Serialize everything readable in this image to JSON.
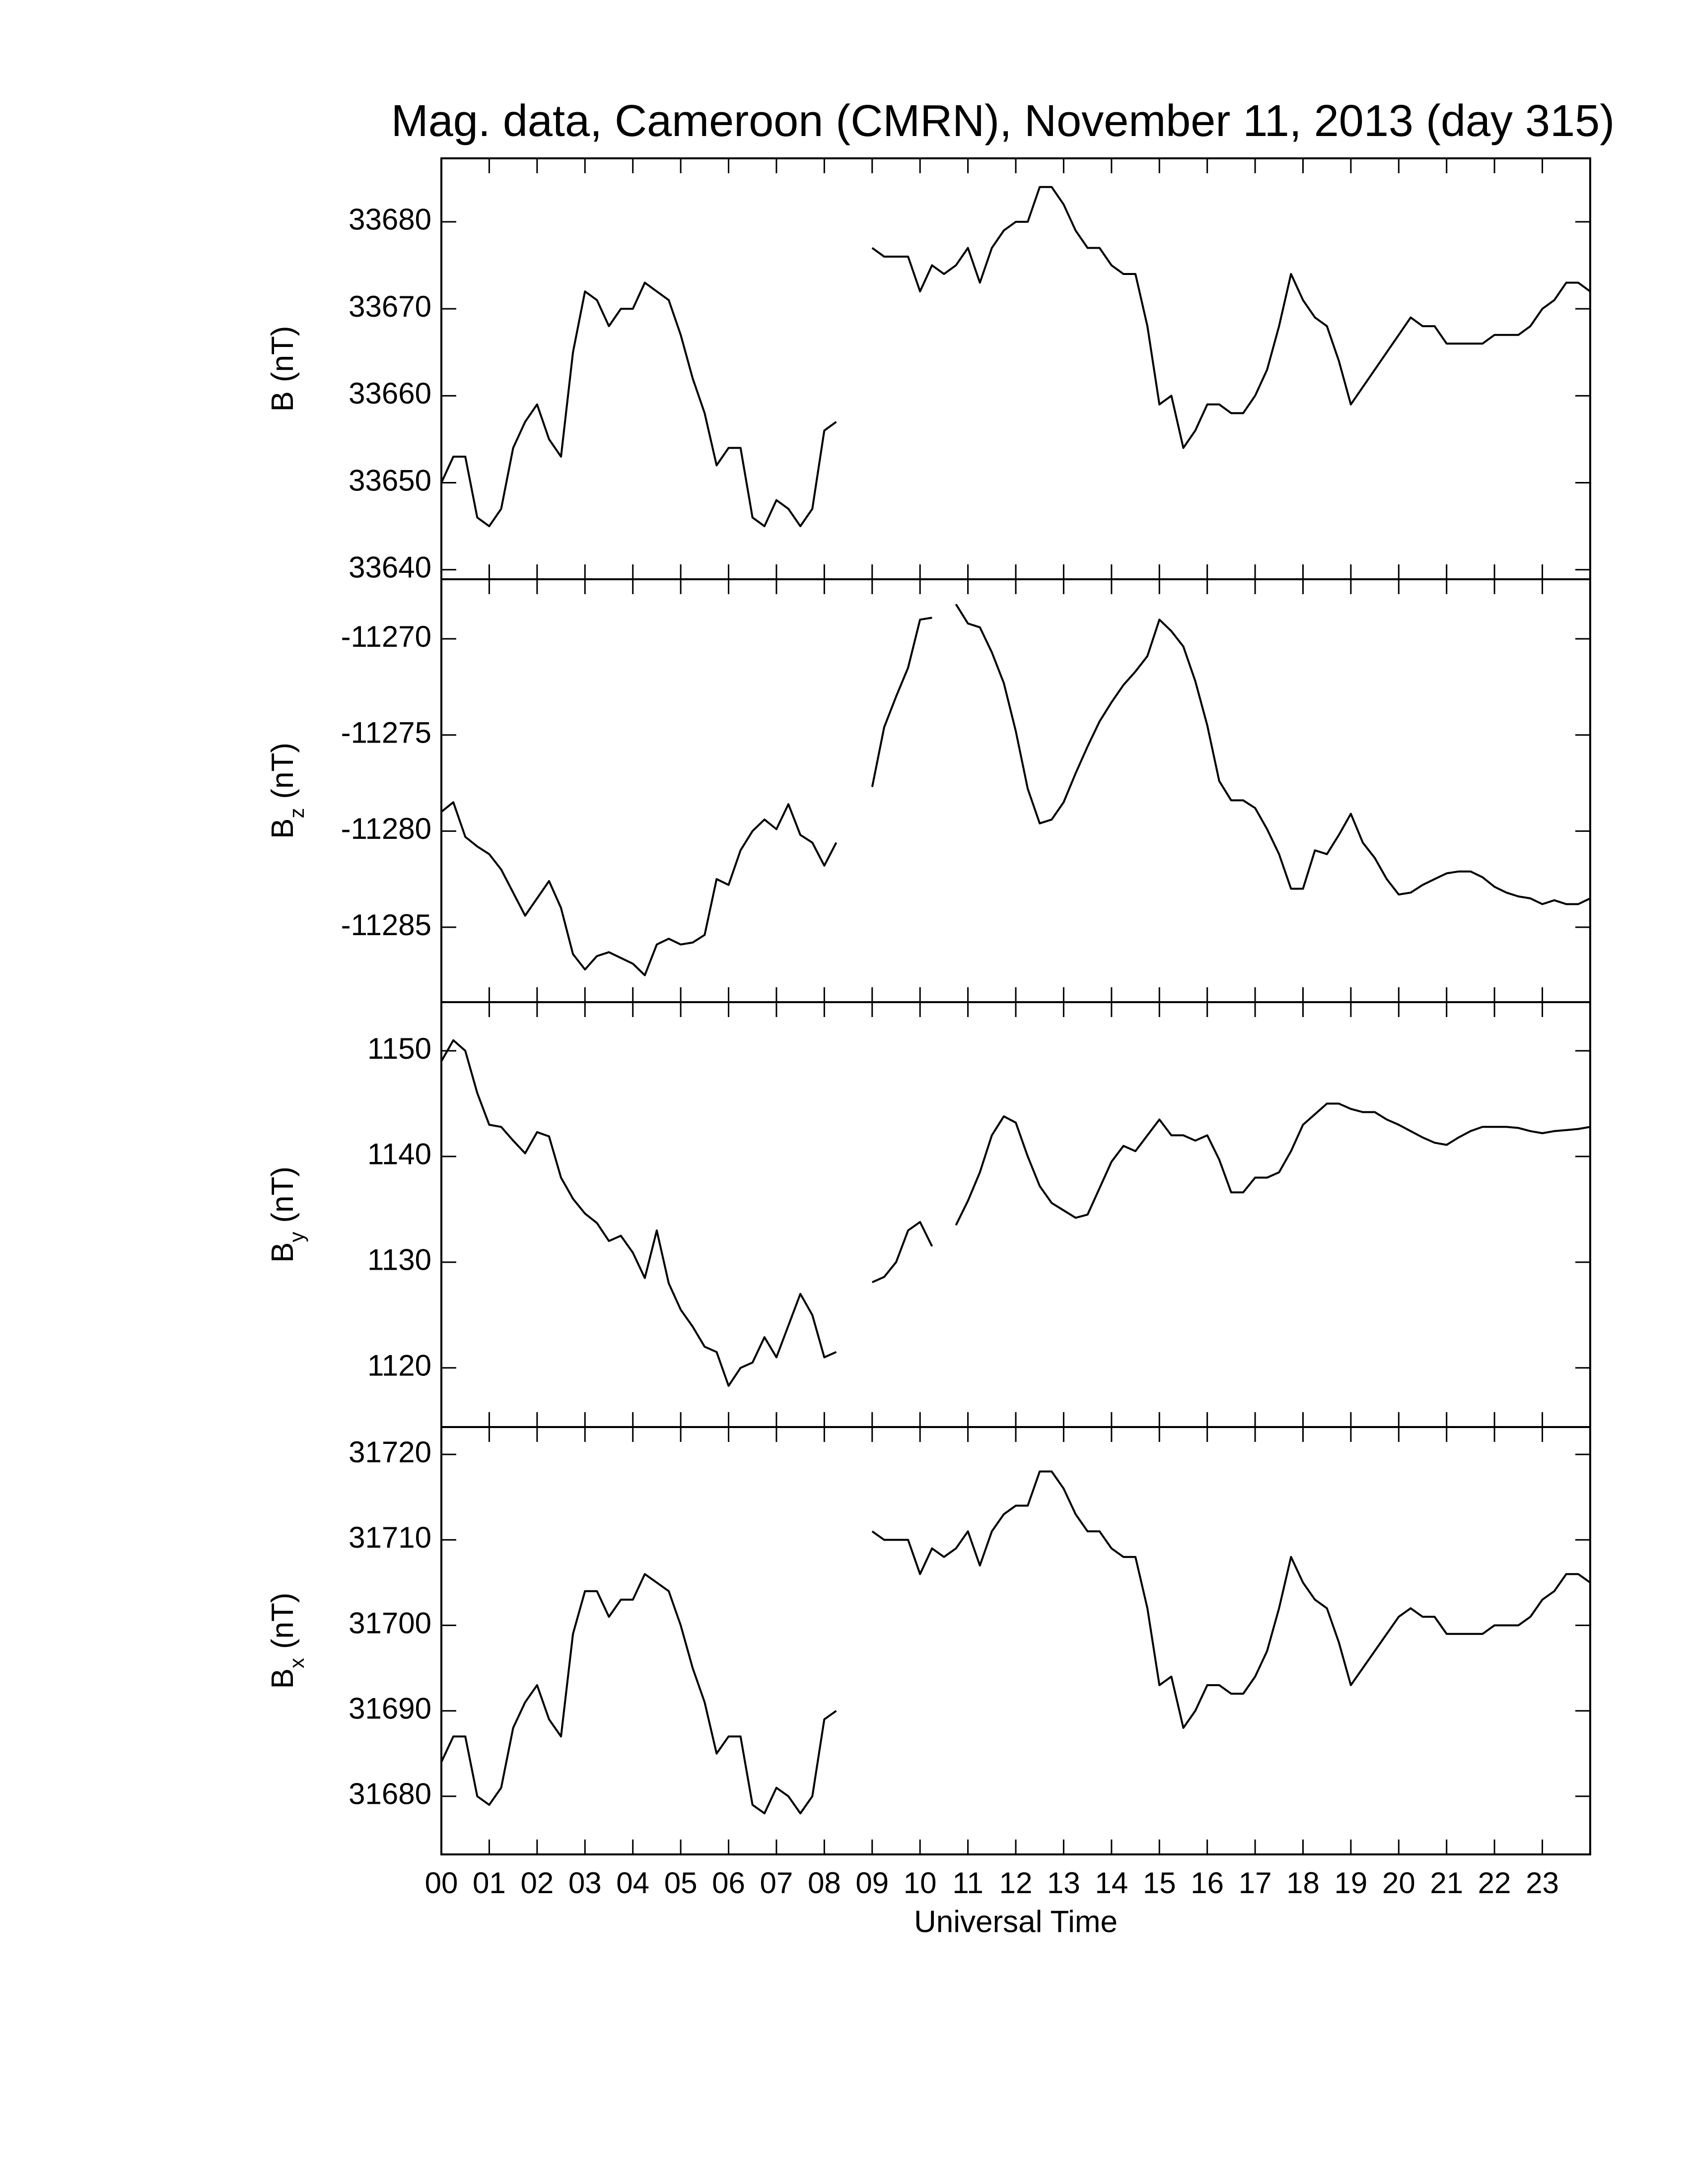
{
  "chart_data": [
    {
      "type": "line",
      "title": "Mag. data, Cameroon (CMRN), November 11, 2013 (day 315)",
      "ylabel": "B",
      "ylabel_unit": "(nT)",
      "color": "#000000",
      "xlim": [
        0,
        24
      ],
      "ylim": [
        33638.9,
        33687.3
      ],
      "yticks": [
        33640,
        33650,
        33660,
        33670,
        33680
      ],
      "x": [
        0,
        0.25,
        0.5,
        0.75,
        1,
        1.25,
        1.5,
        1.75,
        2,
        2.25,
        2.5,
        2.75,
        3,
        3.25,
        3.5,
        3.75,
        4,
        4.25,
        4.5,
        4.75,
        5,
        5.25,
        5.5,
        5.75,
        6,
        6.25,
        6.5,
        6.75,
        7,
        7.25,
        7.5,
        7.75,
        8,
        8.25,
        8.5,
        8.75,
        9,
        9.25,
        9.5,
        9.75,
        10,
        10.25,
        10.5,
        10.75,
        11,
        11.25,
        11.5,
        11.75,
        12,
        12.25,
        12.5,
        12.75,
        13,
        13.25,
        13.5,
        13.75,
        14,
        14.25,
        14.5,
        14.75,
        15,
        15.25,
        15.5,
        15.75,
        16,
        16.25,
        16.5,
        16.75,
        17,
        17.25,
        17.5,
        17.75,
        18,
        18.25,
        18.5,
        18.75,
        19,
        19.25,
        19.5,
        19.75,
        20,
        20.25,
        20.5,
        20.75,
        21,
        21.25,
        21.5,
        21.75,
        22,
        22.25,
        22.5,
        22.75,
        23,
        23.25,
        23.5,
        23.75,
        24
      ],
      "values": [
        33650,
        33653,
        33653,
        33646,
        33645,
        33647,
        33654,
        33657,
        33659,
        33655,
        33653,
        33665,
        33672,
        33671,
        33668,
        33670,
        33670,
        33673,
        33672,
        33671,
        33667,
        33662,
        33658,
        33652,
        33654,
        33654,
        33646,
        33645,
        33648,
        33647,
        33645,
        33647,
        33656,
        33657,
        null,
        null,
        33677,
        33676,
        33676,
        33676,
        33672,
        33675,
        33674,
        33675,
        33677,
        33673,
        33677,
        33679,
        33680,
        33680,
        33684,
        33684,
        33682,
        33679,
        33677,
        33677,
        33675,
        33674,
        33674,
        33668,
        33659,
        33660,
        33654,
        33656,
        33659,
        33659,
        33658,
        33658,
        33660,
        33663,
        33668,
        33674,
        33671,
        33669,
        33668,
        33664,
        33659,
        33661,
        33663,
        33665,
        33667,
        33669,
        33668,
        33668,
        33666,
        33666,
        33666,
        33666,
        33667,
        33667,
        33667,
        33668,
        33670,
        33671,
        33673,
        33673,
        33672
      ]
    },
    {
      "type": "line",
      "ylabel": "B",
      "ylabel_subscript": "z",
      "ylabel_unit": "(nT)",
      "color": "#000000",
      "xlim": [
        0,
        24
      ],
      "ylim": [
        -11288.9,
        -11266.9
      ],
      "yticks": [
        -11285,
        -11280,
        -11275,
        -11270
      ],
      "x": [
        0,
        0.25,
        0.5,
        0.75,
        1,
        1.25,
        1.5,
        1.75,
        2,
        2.25,
        2.5,
        2.75,
        3,
        3.25,
        3.5,
        3.75,
        4,
        4.25,
        4.5,
        4.75,
        5,
        5.25,
        5.5,
        5.75,
        6,
        6.25,
        6.5,
        6.75,
        7,
        7.25,
        7.5,
        7.75,
        8,
        8.25,
        8.5,
        8.75,
        9,
        9.25,
        9.5,
        9.75,
        10,
        10.25,
        10.5,
        10.75,
        11,
        11.25,
        11.5,
        11.75,
        12,
        12.25,
        12.5,
        12.75,
        13,
        13.25,
        13.5,
        13.75,
        14,
        14.25,
        14.5,
        14.75,
        15,
        15.25,
        15.5,
        15.75,
        16,
        16.25,
        16.5,
        16.75,
        17,
        17.25,
        17.5,
        17.75,
        18,
        18.25,
        18.5,
        18.75,
        19,
        19.25,
        19.5,
        19.75,
        20,
        20.25,
        20.5,
        20.75,
        21,
        21.25,
        21.5,
        21.75,
        22,
        22.25,
        22.5,
        22.75,
        23,
        23.25,
        23.5,
        23.75,
        24
      ],
      "values": [
        -11279,
        -11278.5,
        -11280.3,
        -11280.8,
        -11281.2,
        -11282,
        -11283.2,
        -11284.4,
        -11283.5,
        -11282.6,
        -11284,
        -11286.4,
        -11287.2,
        -11286.5,
        -11286.3,
        -11286.6,
        -11286.9,
        -11287.5,
        -11285.9,
        -11285.6,
        -11285.9,
        -11285.8,
        -11285.4,
        -11282.5,
        -11282.8,
        -11281,
        -11280,
        -11279.4,
        -11279.9,
        -11278.6,
        -11280.2,
        -11280.6,
        -11281.8,
        -11280.6,
        null,
        null,
        -11277.7,
        -11274.6,
        -11273,
        -11271.5,
        -11269,
        -11268.9,
        null,
        -11268.2,
        -11269.2,
        -11269.4,
        -11270.7,
        -11272.3,
        -11274.8,
        -11277.8,
        -11279.6,
        -11279.4,
        -11278.5,
        -11277,
        -11275.6,
        -11274.3,
        -11273.3,
        -11272.4,
        -11271.7,
        -11270.9,
        -11269,
        -11269.6,
        -11270.4,
        -11272.2,
        -11274.5,
        -11277.4,
        -11278.4,
        -11278.4,
        -11278.8,
        -11279.9,
        -11281.2,
        -11283,
        -11283,
        -11281,
        -11281.2,
        -11280.2,
        -11279.1,
        -11280.6,
        -11281.4,
        -11282.5,
        -11283.3,
        -11283.2,
        -11282.8,
        -11282.5,
        -11282.2,
        -11282.1,
        -11282.1,
        -11282.4,
        -11282.9,
        -11283.2,
        -11283.4,
        -11283.5,
        -11283.8,
        -11283.6,
        -11283.8,
        -11283.8,
        -11283.5
      ]
    },
    {
      "type": "line",
      "ylabel": "B",
      "ylabel_subscript": "y",
      "ylabel_unit": "(nT)",
      "color": "#000000",
      "xlim": [
        0,
        24
      ],
      "ylim": [
        1114.4,
        1154.6
      ],
      "yticks": [
        1120,
        1130,
        1140,
        1150
      ],
      "x": [
        0,
        0.25,
        0.5,
        0.75,
        1,
        1.25,
        1.5,
        1.75,
        2,
        2.25,
        2.5,
        2.75,
        3,
        3.25,
        3.5,
        3.75,
        4,
        4.25,
        4.5,
        4.75,
        5,
        5.25,
        5.5,
        5.75,
        6,
        6.25,
        6.5,
        6.75,
        7,
        7.25,
        7.5,
        7.75,
        8,
        8.25,
        8.5,
        8.75,
        9,
        9.25,
        9.5,
        9.75,
        10,
        10.25,
        10.5,
        10.75,
        11,
        11.25,
        11.5,
        11.75,
        12,
        12.25,
        12.5,
        12.75,
        13,
        13.25,
        13.5,
        13.75,
        14,
        14.25,
        14.5,
        14.75,
        15,
        15.25,
        15.5,
        15.75,
        16,
        16.25,
        16.5,
        16.75,
        17,
        17.25,
        17.5,
        17.75,
        18,
        18.25,
        18.5,
        18.75,
        19,
        19.25,
        19.5,
        19.75,
        20,
        20.25,
        20.5,
        20.75,
        21,
        21.25,
        21.5,
        21.75,
        22,
        22.25,
        22.5,
        22.75,
        23,
        23.25,
        23.5,
        23.75,
        24
      ],
      "values": [
        1149,
        1151,
        1150,
        1146,
        1143,
        1142.8,
        1141.5,
        1140.3,
        1142.3,
        1141.9,
        1138,
        1136,
        1134.6,
        1133.7,
        1132,
        1132.5,
        1130.9,
        1128.5,
        1133,
        1128,
        1125.5,
        1123.9,
        1122,
        1121.5,
        1118.3,
        1120,
        1120.5,
        1122.9,
        1121,
        1124,
        1127,
        1125,
        1121,
        1121.5,
        null,
        null,
        1128.1,
        1128.6,
        1130,
        1133,
        1133.8,
        1131.5,
        null,
        1133.5,
        1135.8,
        1138.5,
        1142,
        1143.8,
        1143.2,
        1140,
        1137.2,
        1135.6,
        1134.9,
        1134.2,
        1134.5,
        1137,
        1139.5,
        1141,
        1140.5,
        1142,
        1143.5,
        1142,
        1142,
        1141.5,
        1142,
        1139.7,
        1136.6,
        1136.6,
        1138,
        1138,
        1138.5,
        1140.5,
        1143,
        1144,
        1145,
        1145,
        1144.5,
        1144.2,
        1144.2,
        1143.5,
        1143,
        1142.4,
        1141.8,
        1141.3,
        1141.1,
        1141.8,
        1142.4,
        1142.8,
        1142.8,
        1142.8,
        1142.7,
        1142.4,
        1142.2,
        1142.4,
        1142.5,
        1142.6,
        1142.8
      ]
    },
    {
      "type": "line",
      "ylabel": "B",
      "ylabel_subscript": "x",
      "ylabel_unit": "(nT)",
      "color": "#000000",
      "xlabel": "Universal Time",
      "xlim": [
        0,
        24
      ],
      "ylim": [
        31673.2,
        31723.2
      ],
      "yticks": [
        31680,
        31690,
        31700,
        31710,
        31720
      ],
      "xticks": [
        {
          "value": 0,
          "label": "00"
        },
        {
          "value": 1,
          "label": "01"
        },
        {
          "value": 2,
          "label": "02"
        },
        {
          "value": 3,
          "label": "03"
        },
        {
          "value": 4,
          "label": "04"
        },
        {
          "value": 5,
          "label": "05"
        },
        {
          "value": 6,
          "label": "06"
        },
        {
          "value": 7,
          "label": "07"
        },
        {
          "value": 8,
          "label": "08"
        },
        {
          "value": 9,
          "label": "09"
        },
        10,
        11,
        12,
        13,
        14,
        15,
        16,
        17,
        18,
        19,
        20,
        21,
        22,
        23
      ],
      "x": [
        0,
        0.25,
        0.5,
        0.75,
        1,
        1.25,
        1.5,
        1.75,
        2,
        2.25,
        2.5,
        2.75,
        3,
        3.25,
        3.5,
        3.75,
        4,
        4.25,
        4.5,
        4.75,
        5,
        5.25,
        5.5,
        5.75,
        6,
        6.25,
        6.5,
        6.75,
        7,
        7.25,
        7.5,
        7.75,
        8,
        8.25,
        8.5,
        8.75,
        9,
        9.25,
        9.5,
        9.75,
        10,
        10.25,
        10.5,
        10.75,
        11,
        11.25,
        11.5,
        11.75,
        12,
        12.25,
        12.5,
        12.75,
        13,
        13.25,
        13.5,
        13.75,
        14,
        14.25,
        14.5,
        14.75,
        15,
        15.25,
        15.5,
        15.75,
        16,
        16.25,
        16.5,
        16.75,
        17,
        17.25,
        17.5,
        17.75,
        18,
        18.25,
        18.5,
        18.75,
        19,
        19.25,
        19.5,
        19.75,
        20,
        20.25,
        20.5,
        20.75,
        21,
        21.25,
        21.5,
        21.75,
        22,
        22.25,
        22.5,
        22.75,
        23,
        23.25,
        23.5,
        23.75,
        24
      ],
      "values": [
        31684,
        31687,
        31687,
        31680,
        31679,
        31681,
        31688,
        31691,
        31693,
        31689,
        31687,
        31699,
        31704,
        31704,
        31701,
        31703,
        31703,
        31706,
        31705,
        31704,
        31700,
        31695,
        31691,
        31685,
        31687,
        31687,
        31679,
        31678,
        31681,
        31680,
        31678,
        31680,
        31689,
        31690,
        null,
        null,
        31711,
        31710,
        31710,
        31710,
        31706,
        31709,
        31708,
        31709,
        31711,
        31707,
        31711,
        31713,
        31714,
        31714,
        31718,
        31718,
        31716,
        31713,
        31711,
        31711,
        31709,
        31708,
        31708,
        31702,
        31693,
        31694,
        31688,
        31690,
        31693,
        31693,
        31692,
        31692,
        31694,
        31697,
        31702,
        31708,
        31705,
        31703,
        31702,
        31698,
        31693,
        31695,
        31697,
        31699,
        31701,
        31702,
        31701,
        31701,
        31699,
        31699,
        31699,
        31699,
        31700,
        31700,
        31700,
        31701,
        31703,
        31704,
        31706,
        31706,
        31705
      ]
    }
  ]
}
